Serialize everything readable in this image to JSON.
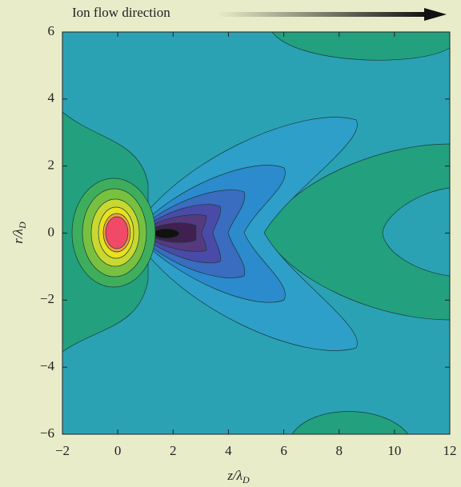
{
  "chart_data": {
    "type": "contour",
    "annotation": "Ion flow direction",
    "x_label": {
      "main": "z/λ",
      "sub": "D"
    },
    "y_label": {
      "main": "r/λ",
      "sub": "D"
    },
    "xlim": [
      -2,
      12
    ],
    "ylim": [
      -6,
      6
    ],
    "xticks": [
      {
        "value": -2,
        "label": "−2"
      },
      0,
      2,
      4,
      6,
      8,
      10,
      12
    ],
    "yticks": [
      {
        "value": -6,
        "label": "−6"
      },
      {
        "value": -4,
        "label": "−4"
      },
      {
        "value": -2,
        "label": "−2"
      },
      0,
      2,
      4,
      6
    ]
  }
}
